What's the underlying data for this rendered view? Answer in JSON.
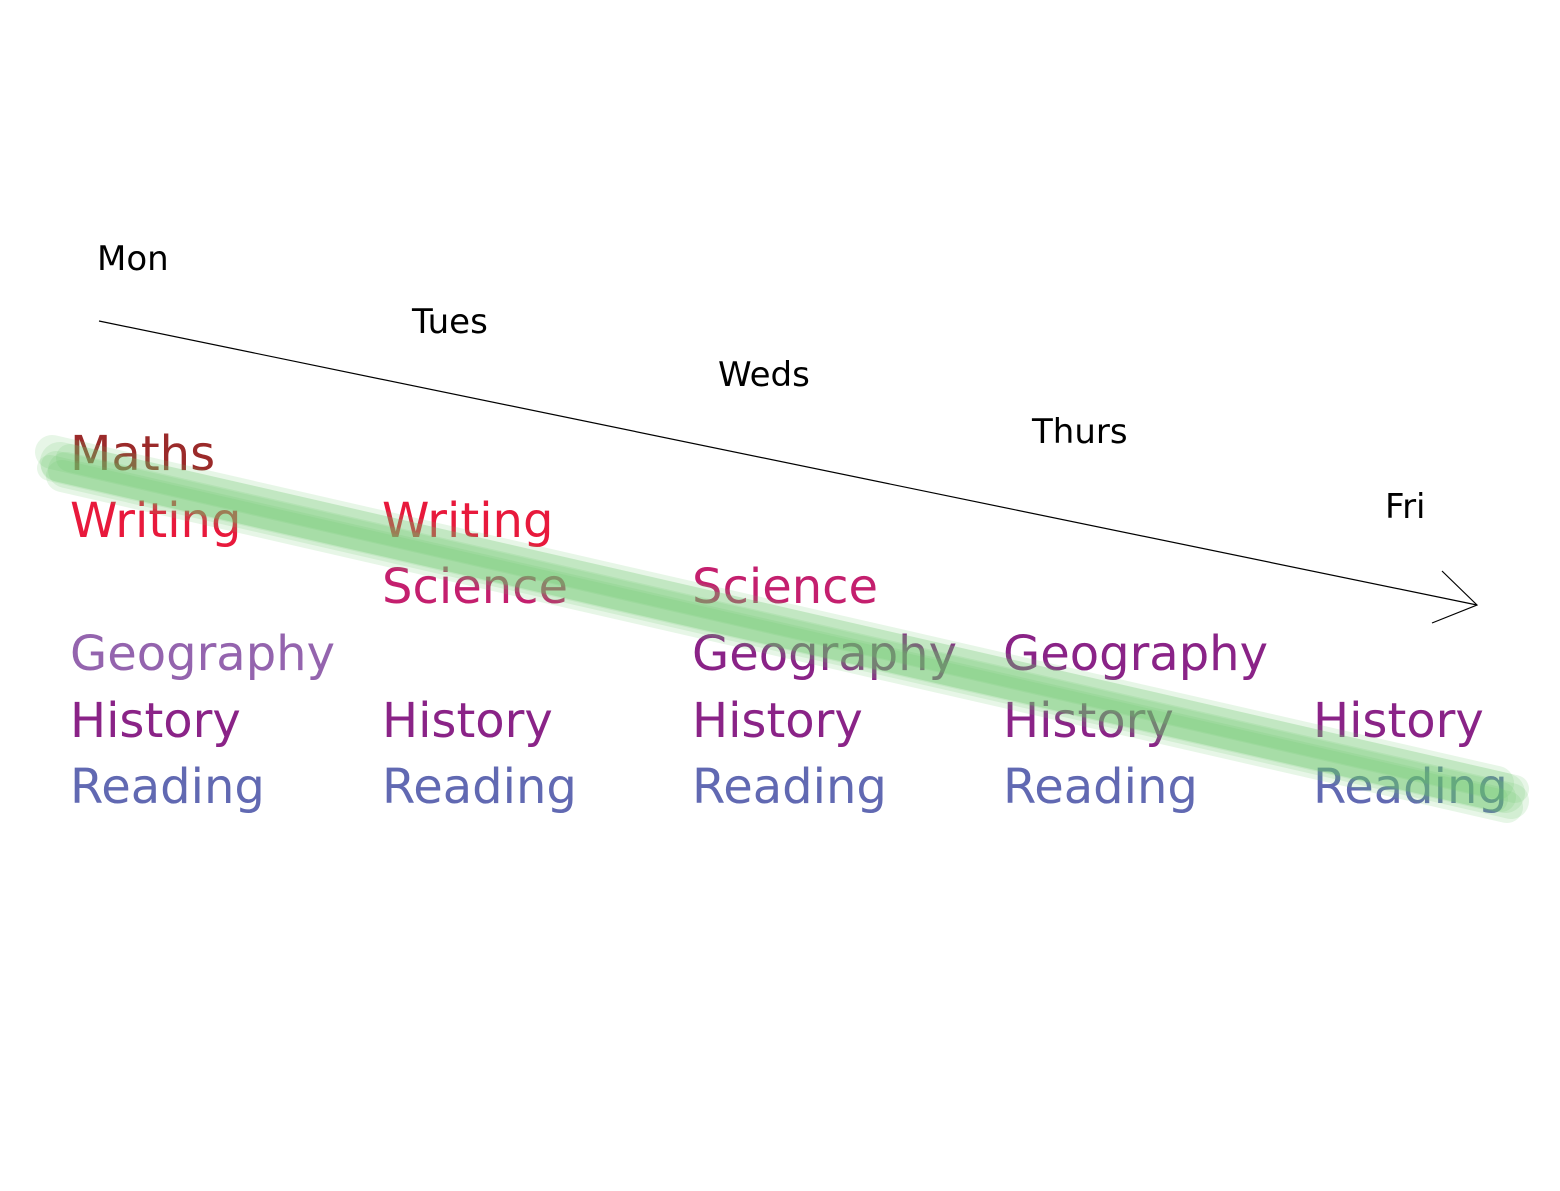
{
  "days": [
    "Mon",
    "Tues",
    "Weds",
    "Thurs",
    "Fri"
  ],
  "subjects": [
    {
      "name": "Maths",
      "color": "#9b2a2a"
    },
    {
      "name": "Writing",
      "color": "#e8193c"
    },
    {
      "name": "Science",
      "color": "#c41f6e"
    },
    {
      "name": "Geography",
      "color": "#8a2387"
    },
    {
      "name": "History",
      "color": "#8a2387"
    },
    {
      "name": "Reading",
      "color": "#6169b2"
    }
  ],
  "schedule": [
    [
      "Maths",
      "Writing",
      "Geography",
      "History",
      "Reading"
    ],
    [
      "Writing",
      "Science",
      "History",
      "Reading"
    ],
    [
      "Science",
      "Geography",
      "History",
      "Reading"
    ],
    [
      "Geography",
      "History",
      "Reading"
    ],
    [
      "History",
      "Reading"
    ]
  ],
  "highlight_color": "#6cc56c",
  "monday_geography_color": "#9464ae"
}
